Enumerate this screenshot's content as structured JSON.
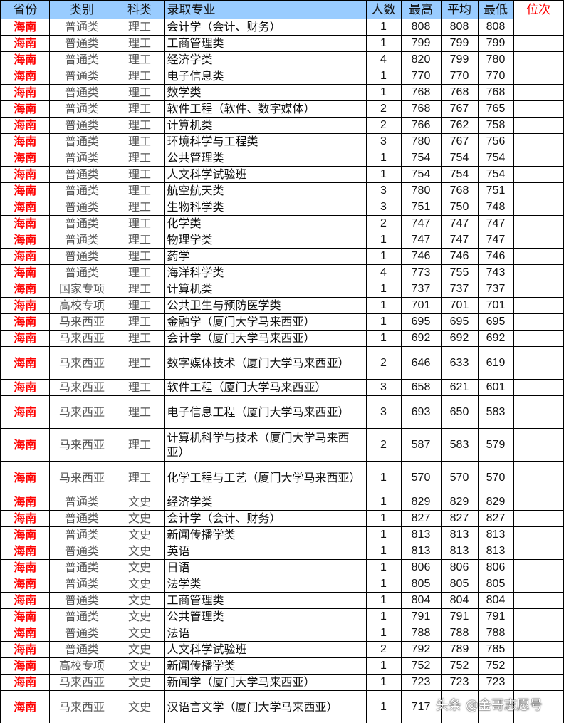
{
  "headers": [
    "省份",
    "类别",
    "科类",
    "录取专业",
    "人数",
    "最高",
    "平均",
    "最低",
    "位次"
  ],
  "rows": [
    [
      "海南",
      "普通类",
      "理工",
      "会计学（会计、财务）",
      "1",
      "808",
      "808",
      "808",
      ""
    ],
    [
      "海南",
      "普通类",
      "理工",
      "工商管理类",
      "1",
      "799",
      "799",
      "799",
      ""
    ],
    [
      "海南",
      "普通类",
      "理工",
      "经济学类",
      "4",
      "820",
      "799",
      "780",
      ""
    ],
    [
      "海南",
      "普通类",
      "理工",
      "电子信息类",
      "1",
      "770",
      "770",
      "770",
      ""
    ],
    [
      "海南",
      "普通类",
      "理工",
      "数学类",
      "1",
      "768",
      "768",
      "768",
      ""
    ],
    [
      "海南",
      "普通类",
      "理工",
      "软件工程（软件、数字媒体）",
      "2",
      "768",
      "767",
      "765",
      ""
    ],
    [
      "海南",
      "普通类",
      "理工",
      "计算机类",
      "2",
      "766",
      "762",
      "758",
      ""
    ],
    [
      "海南",
      "普通类",
      "理工",
      "环境科学与工程类",
      "3",
      "780",
      "767",
      "756",
      ""
    ],
    [
      "海南",
      "普通类",
      "理工",
      "公共管理类",
      "1",
      "754",
      "754",
      "754",
      ""
    ],
    [
      "海南",
      "普通类",
      "理工",
      "人文科学试验班",
      "1",
      "754",
      "754",
      "754",
      ""
    ],
    [
      "海南",
      "普通类",
      "理工",
      "航空航天类",
      "3",
      "780",
      "768",
      "751",
      ""
    ],
    [
      "海南",
      "普通类",
      "理工",
      "生物科学类",
      "3",
      "751",
      "750",
      "748",
      ""
    ],
    [
      "海南",
      "普通类",
      "理工",
      "化学类",
      "2",
      "747",
      "747",
      "747",
      ""
    ],
    [
      "海南",
      "普通类",
      "理工",
      "物理学类",
      "1",
      "747",
      "747",
      "747",
      ""
    ],
    [
      "海南",
      "普通类",
      "理工",
      "药学",
      "1",
      "746",
      "746",
      "746",
      ""
    ],
    [
      "海南",
      "普通类",
      "理工",
      "海洋科学类",
      "4",
      "773",
      "755",
      "743",
      ""
    ],
    [
      "海南",
      "国家专项",
      "理工",
      "计算机类",
      "1",
      "737",
      "737",
      "737",
      ""
    ],
    [
      "海南",
      "高校专项",
      "理工",
      "公共卫生与预防医学类",
      "1",
      "701",
      "701",
      "701",
      ""
    ],
    [
      "海南",
      "马来西亚",
      "理工",
      "金融学（厦门大学马来西亚）",
      "1",
      "695",
      "695",
      "695",
      ""
    ],
    [
      "海南",
      "马来西亚",
      "理工",
      "会计学（厦门大学马来西亚）",
      "1",
      "692",
      "692",
      "692",
      ""
    ],
    [
      "海南",
      "马来西亚",
      "理工",
      "数字媒体技术（厦门大学马来西亚）",
      "2",
      "646",
      "633",
      "619",
      ""
    ],
    [
      "海南",
      "马来西亚",
      "理工",
      "软件工程（厦门大学马来西亚）",
      "3",
      "658",
      "621",
      "601",
      ""
    ],
    [
      "海南",
      "马来西亚",
      "理工",
      "电子信息工程（厦门大学马来西亚）",
      "3",
      "693",
      "650",
      "583",
      ""
    ],
    [
      "海南",
      "马来西亚",
      "理工",
      "计算机科学与技术（厦门大学马来西亚）",
      "2",
      "587",
      "583",
      "579",
      ""
    ],
    [
      "海南",
      "马来西亚",
      "理工",
      "化学工程与工艺（厦门大学马来西亚）",
      "1",
      "570",
      "570",
      "570",
      ""
    ],
    [
      "海南",
      "普通类",
      "文史",
      "经济学类",
      "1",
      "829",
      "829",
      "829",
      ""
    ],
    [
      "海南",
      "普通类",
      "文史",
      "会计学（会计、财务）",
      "1",
      "827",
      "827",
      "827",
      ""
    ],
    [
      "海南",
      "普通类",
      "文史",
      "新闻传播学类",
      "1",
      "813",
      "813",
      "813",
      ""
    ],
    [
      "海南",
      "普通类",
      "文史",
      "英语",
      "1",
      "813",
      "813",
      "813",
      ""
    ],
    [
      "海南",
      "普通类",
      "文史",
      "日语",
      "1",
      "806",
      "806",
      "806",
      ""
    ],
    [
      "海南",
      "普通类",
      "文史",
      "法学类",
      "1",
      "805",
      "805",
      "805",
      ""
    ],
    [
      "海南",
      "普通类",
      "文史",
      "工商管理类",
      "1",
      "804",
      "804",
      "804",
      ""
    ],
    [
      "海南",
      "普通类",
      "文史",
      "公共管理类",
      "1",
      "791",
      "791",
      "791",
      ""
    ],
    [
      "海南",
      "普通类",
      "文史",
      "法语",
      "1",
      "788",
      "788",
      "788",
      ""
    ],
    [
      "海南",
      "普通类",
      "文史",
      "人文科学试验班",
      "2",
      "792",
      "789",
      "785",
      ""
    ],
    [
      "海南",
      "高校专项",
      "文史",
      "新闻传播学类",
      "1",
      "752",
      "752",
      "752",
      ""
    ],
    [
      "海南",
      "马来西亚",
      "文史",
      "新闻学（厦门大学马来西亚）",
      "1",
      "723",
      "723",
      "723",
      ""
    ],
    [
      "海南",
      "马来西亚",
      "文史",
      "汉语言文学（厦门大学马来西亚）",
      "1",
      "717",
      "",
      "",
      ""
    ]
  ],
  "double_rows": [
    20,
    22,
    23,
    24,
    37
  ],
  "watermark": "头条 @金哥志愿号",
  "colors": {
    "header_bg": "#99ccff",
    "province": "#ff0000",
    "rank_header": "#ff0000"
  }
}
